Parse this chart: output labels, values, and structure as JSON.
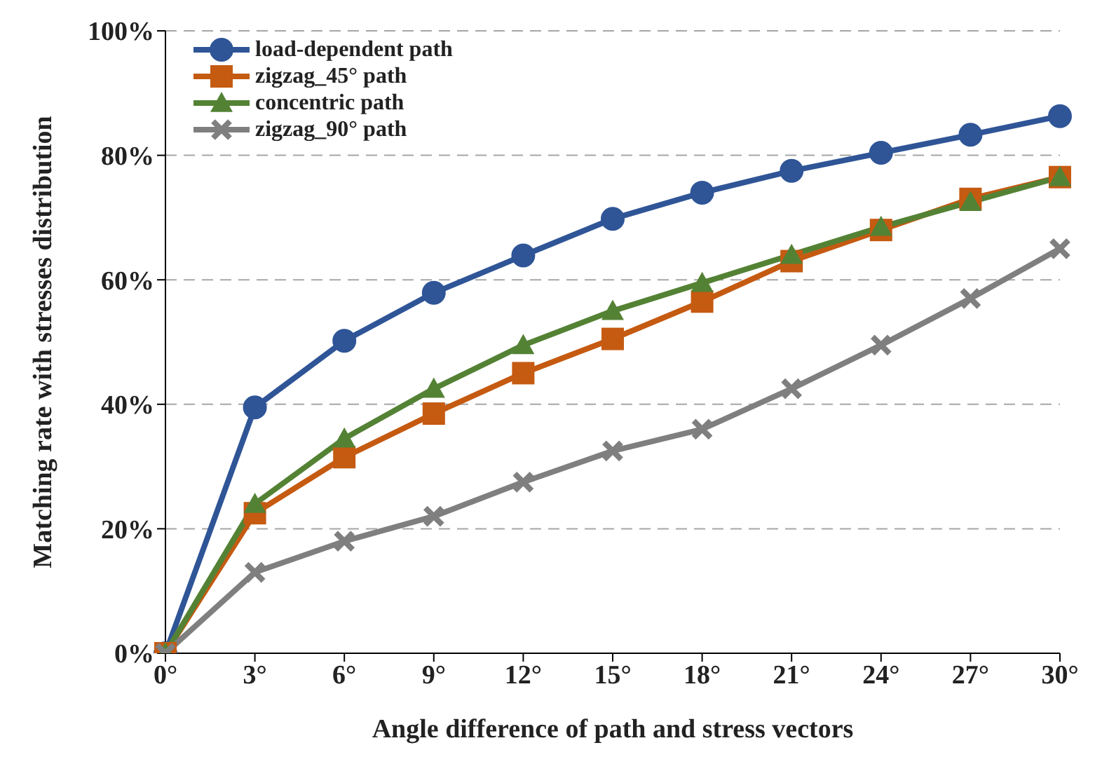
{
  "chart_data": {
    "type": "line",
    "xlabel": "Angle difference of path and stress vectors",
    "ylabel": "Matching rate with stresses distribution",
    "categories": [
      "0°",
      "3°",
      "6°",
      "9°",
      "12°",
      "15°",
      "18°",
      "21°",
      "24°",
      "27°",
      "30°"
    ],
    "series": [
      {
        "name": "load-dependent path",
        "color": "#2f5597",
        "marker": "circle",
        "values": [
          0,
          39.5,
          50.2,
          57.9,
          63.9,
          69.8,
          74.0,
          77.5,
          80.4,
          83.3,
          86.3
        ]
      },
      {
        "name": "zigzag_45° path",
        "color": "#c55a11",
        "marker": "square",
        "values": [
          0,
          22.5,
          31.5,
          38.5,
          45,
          50.5,
          56.5,
          63,
          68,
          73,
          76.5
        ]
      },
      {
        "name": "concentric path",
        "color": "#548235",
        "marker": "triangle",
        "values": [
          0,
          24,
          34.5,
          42.5,
          49.5,
          55,
          59.5,
          64,
          68.5,
          72.5,
          76.5
        ]
      },
      {
        "name": "zigzag_90° path",
        "color": "#7f7f7f",
        "marker": "cross",
        "values": [
          0,
          13,
          18,
          22,
          27.5,
          32.5,
          36,
          42.5,
          49.5,
          57,
          65
        ]
      }
    ],
    "ylim": [
      0,
      100
    ],
    "yticks": [
      {
        "value": 0,
        "label": "0%"
      },
      {
        "value": 20,
        "label": "20%"
      },
      {
        "value": 40,
        "label": "40%"
      },
      {
        "value": 60,
        "label": "60%"
      },
      {
        "value": 80,
        "label": "80%"
      },
      {
        "value": 100,
        "label": "100%"
      }
    ],
    "grid": "y",
    "legend": "top left",
    "line_style": "solid"
  }
}
